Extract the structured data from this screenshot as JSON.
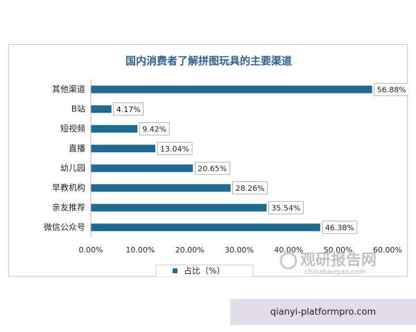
{
  "chart_data": {
    "type": "bar",
    "orientation": "horizontal",
    "title": "国内消费者了解拼图玩具的主要渠道",
    "categories": [
      "其他渠道",
      "B站",
      "短视频",
      "直播",
      "幼儿园",
      "早教机构",
      "亲友推荐",
      "微信公众号"
    ],
    "series": [
      {
        "name": "占比（%）",
        "values": [
          56.88,
          4.17,
          9.42,
          13.04,
          20.65,
          28.26,
          35.54,
          46.38
        ],
        "color": "#1f6b8f"
      }
    ],
    "data_labels": [
      "56.88%",
      "4.17%",
      "9.42%",
      "13.04%",
      "20.65%",
      "28.26%",
      "35.54%",
      "46.38%"
    ],
    "xlim": [
      0,
      60
    ],
    "xticks": [
      0,
      10,
      20,
      30,
      40,
      50,
      60
    ],
    "xtick_labels": [
      "0.00%",
      "10.00%",
      "20.00%",
      "30.00%",
      "40.00%",
      "50.00%",
      "60.00%"
    ],
    "grid": false,
    "legend": "bottom"
  },
  "watermark": {
    "cn": "观研报告网",
    "en": "chinabaogao.com"
  },
  "footer": {
    "text": "qianyi-platformpro.com"
  }
}
